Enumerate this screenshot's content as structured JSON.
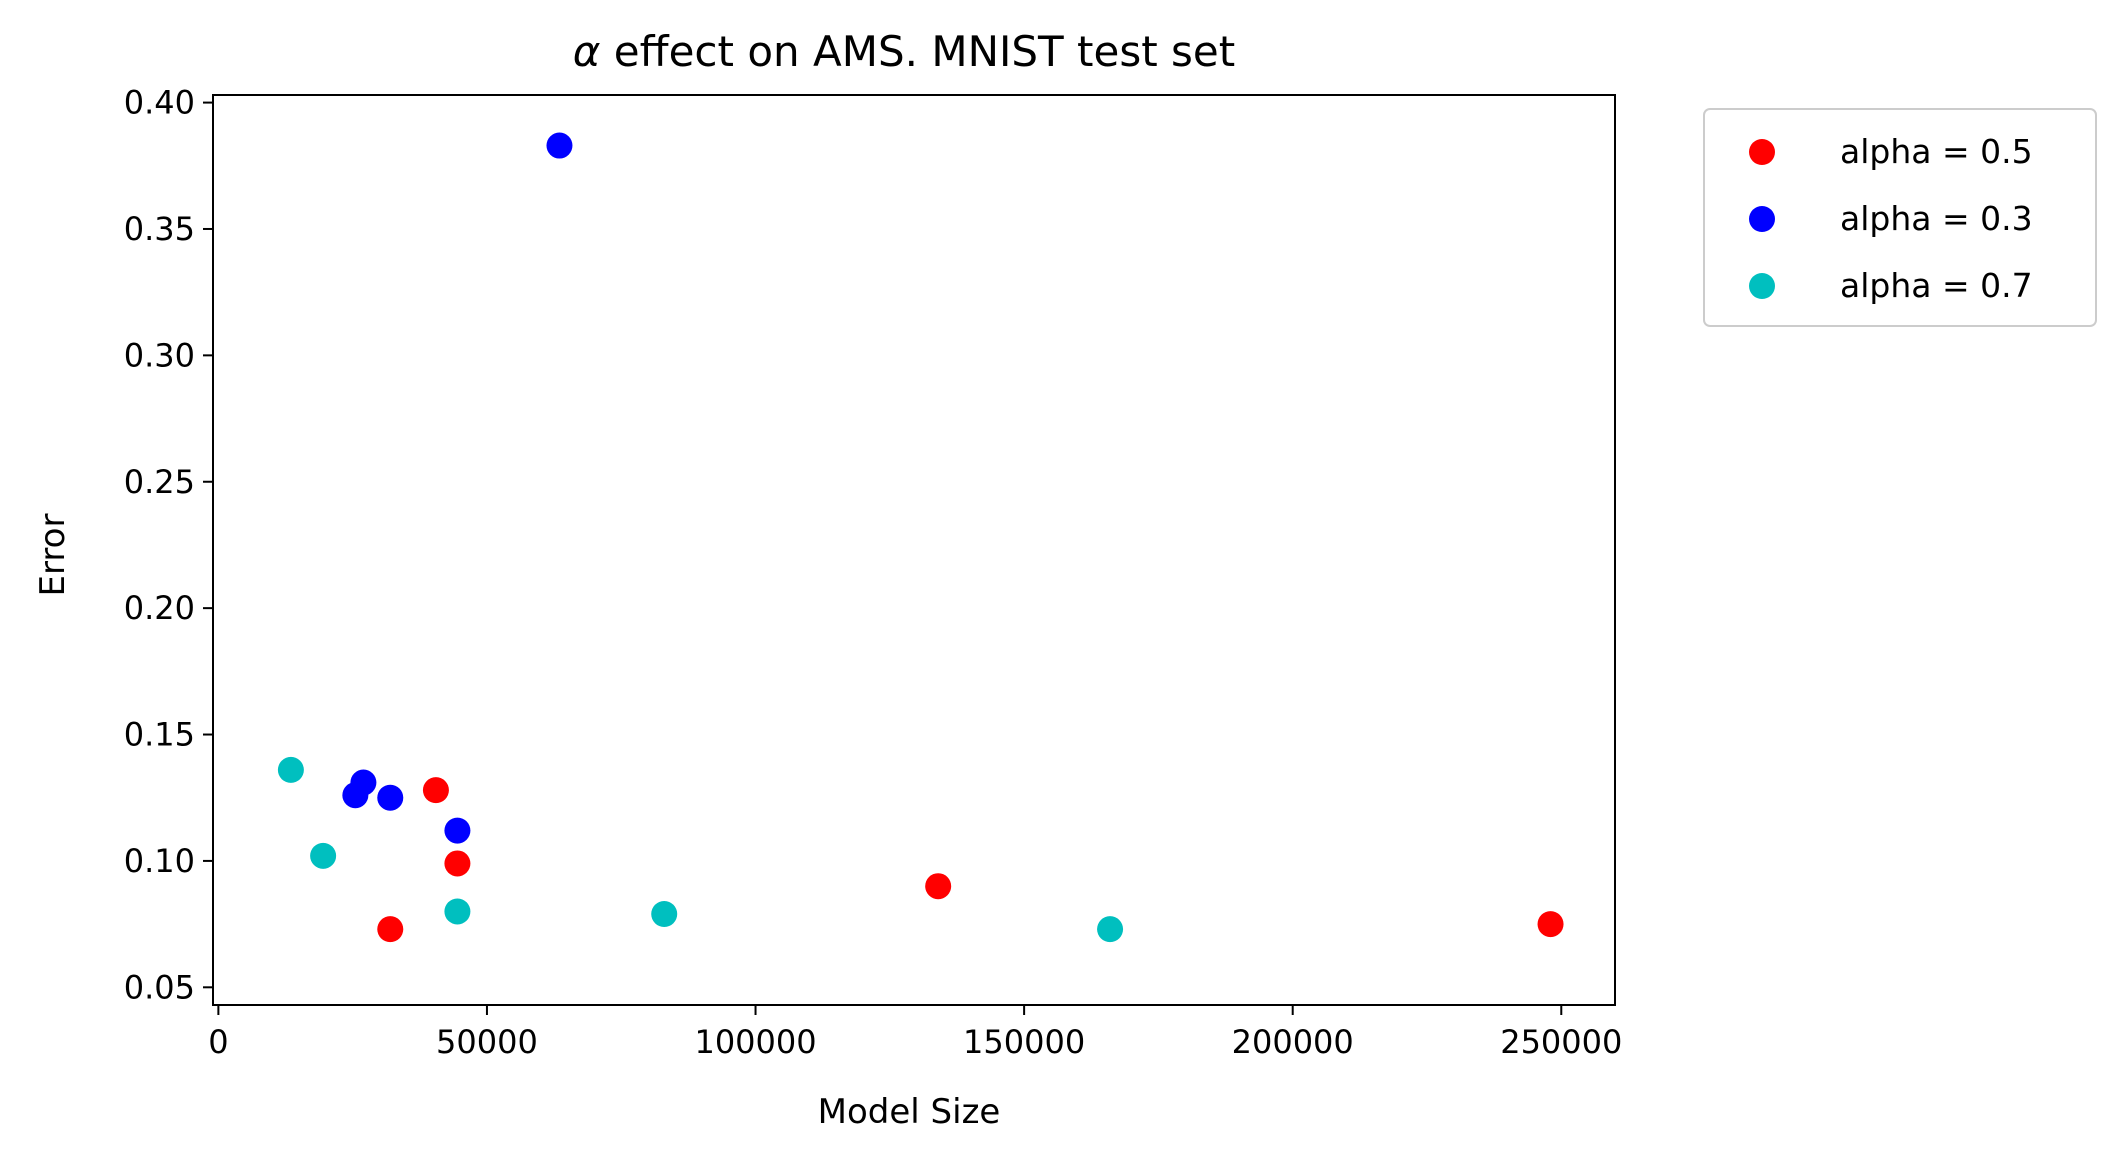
{
  "chart_data": {
    "type": "scatter",
    "title": {
      "symbol": "α",
      "text": " effect on AMS. MNIST test set"
    },
    "xlabel": "Model Size",
    "ylabel": "Error",
    "xlim": [
      -1000,
      260000
    ],
    "ylim": [
      0.043,
      0.403
    ],
    "xticks": [
      0,
      50000,
      100000,
      150000,
      200000,
      250000
    ],
    "yticks": [
      0.05,
      0.1,
      0.15,
      0.2,
      0.25,
      0.3,
      0.35,
      0.4
    ],
    "ytick_labels": [
      "0.05",
      "0.10",
      "0.15",
      "0.20",
      "0.25",
      "0.30",
      "0.35",
      "0.40"
    ],
    "grid": false,
    "legend_position": "outside-top-right",
    "series": [
      {
        "name": "alpha = 0.5",
        "color": "#ff0000",
        "points": [
          {
            "x": 40500,
            "y": 0.128
          },
          {
            "x": 44500,
            "y": 0.099
          },
          {
            "x": 32000,
            "y": 0.073
          },
          {
            "x": 134000,
            "y": 0.09
          },
          {
            "x": 248000,
            "y": 0.075
          }
        ]
      },
      {
        "name": "alpha = 0.3",
        "color": "#0000ff",
        "points": [
          {
            "x": 63500,
            "y": 0.383
          },
          {
            "x": 27000,
            "y": 0.131
          },
          {
            "x": 25500,
            "y": 0.126
          },
          {
            "x": 32000,
            "y": 0.125
          },
          {
            "x": 44500,
            "y": 0.112
          }
        ]
      },
      {
        "name": "alpha = 0.7",
        "color": "#00bfbf",
        "points": [
          {
            "x": 13500,
            "y": 0.136
          },
          {
            "x": 19500,
            "y": 0.102
          },
          {
            "x": 44500,
            "y": 0.08
          },
          {
            "x": 83000,
            "y": 0.079
          },
          {
            "x": 166000,
            "y": 0.073
          }
        ]
      }
    ]
  }
}
